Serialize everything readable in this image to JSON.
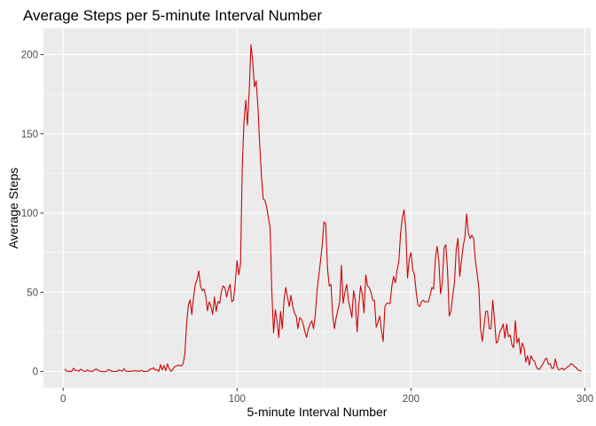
{
  "chart_data": {
    "type": "line",
    "title": "Average Steps per 5-minute Interval Number",
    "xlabel": "5-minute Interval Number",
    "ylabel": "Average Steps",
    "xlim": [
      -11.3,
      303.3
    ],
    "ylim": [
      -10.3,
      216.5
    ],
    "x_ticks": [
      0,
      100,
      200,
      300
    ],
    "y_ticks": [
      0,
      50,
      100,
      150,
      200
    ],
    "grid": true,
    "legend": "none",
    "colors": {
      "line": "#cc0000",
      "panel": "#ebebeb",
      "grid": "#ffffff",
      "tick_text": "#4d4d4d"
    },
    "series": [
      {
        "x_start": 1,
        "x_step": 1,
        "values": [
          1.7,
          0.3,
          0.1,
          0.2,
          0.1,
          2.1,
          0.5,
          0.9,
          0.1,
          1.5,
          0.8,
          0.2,
          0.1,
          1.1,
          0.2,
          0.3,
          0.0,
          1.1,
          1.6,
          0.9,
          0.2,
          0.1,
          0.0,
          0.0,
          0.2,
          1.3,
          0.7,
          0.1,
          0.2,
          0.0,
          0.1,
          1.0,
          0.6,
          0.2,
          1.8,
          0.3,
          0.2,
          0.1,
          0.1,
          0.3,
          0.6,
          0.3,
          0.5,
          0.1,
          0.9,
          0.1,
          0.0,
          0.2,
          0.3,
          1.6,
          1.5,
          2.4,
          0.9,
          1.3,
          0.0,
          4.3,
          1.0,
          3.8,
          0.5,
          4.8,
          1.9,
          0.1,
          1.1,
          3.0,
          3.4,
          4.0,
          3.8,
          3.5,
          5.0,
          11.3,
          30.0,
          42.0,
          45.2,
          36.0,
          47.1,
          55.0,
          58.0,
          63.5,
          54.0,
          51.0,
          52.0,
          47.5,
          38.3,
          44.0,
          41.0,
          36.0,
          47.0,
          38.0,
          44.2,
          43.0,
          50.5,
          54.0,
          53.0,
          47.0,
          52.0,
          55.0,
          44.0,
          45.0,
          56.5,
          70.0,
          61.0,
          68.0,
          129.5,
          157.5,
          171.2,
          155.4,
          177.3,
          206.2,
          196.0,
          179.6,
          183.4,
          167.0,
          143.5,
          124.0,
          109.0,
          108.0,
          104.0,
          97.0,
          91.0,
          50.0,
          24.5,
          39.0,
          32.0,
          21.5,
          38.0,
          27.0,
          45.0,
          53.0,
          47.0,
          41.0,
          48.0,
          41.0,
          37.0,
          35.0,
          27.0,
          34.0,
          33.0,
          30.0,
          25.0,
          21.5,
          27.0,
          30.0,
          32.0,
          27.0,
          36.0,
          51.0,
          60.5,
          70.0,
          80.0,
          94.5,
          93.0,
          65.0,
          54.0,
          55.0,
          35.0,
          27.0,
          34.0,
          39.0,
          44.0,
          67.0,
          43.0,
          50.0,
          55.0,
          45.0,
          40.0,
          34.0,
          51.0,
          45.0,
          25.0,
          42.0,
          54.0,
          49.0,
          37.0,
          61.0,
          54.0,
          53.0,
          50.0,
          45.0,
          45.0,
          28.0,
          31.0,
          35.0,
          26.0,
          19.0,
          41.0,
          43.0,
          43.0,
          43.0,
          54.0,
          60.0,
          56.0,
          64.0,
          69.0,
          87.0,
          97.0,
          102.0,
          90.0,
          59.0,
          71.0,
          75.0,
          64.0,
          61.0,
          50.0,
          42.0,
          41.0,
          44.0,
          45.0,
          44.0,
          44.0,
          44.0,
          48.0,
          53.0,
          52.0,
          71.0,
          79.0,
          70.0,
          49.0,
          56.0,
          78.0,
          80.0,
          64.0,
          35.0,
          38.0,
          48.0,
          56.0,
          77.0,
          84.0,
          60.0,
          70.0,
          79.0,
          85.0,
          99.5,
          87.0,
          84.0,
          86.0,
          84.0,
          70.0,
          62.0,
          53.0,
          27.0,
          19.0,
          29.0,
          38.0,
          38.0,
          27.0,
          27.0,
          45.0,
          33.0,
          18.0,
          19.0,
          25.0,
          27.0,
          30.0,
          21.0,
          30.0,
          22.0,
          23.0,
          17.0,
          15.0,
          32.0,
          18.0,
          21.0,
          11.0,
          18.0,
          15.0,
          6.0,
          10.0,
          4.0,
          10.0,
          7.5,
          6.5,
          3.0,
          1.5,
          1.5,
          3.5,
          5.0,
          7.5,
          8.5,
          4.5,
          5.0,
          2.0,
          2.2,
          8.0,
          3.0,
          1.0,
          1.5,
          2.2,
          1.0,
          2.0,
          3.0,
          3.5,
          5.0,
          4.5,
          3.0,
          2.5,
          1.0,
          0.5,
          0.3
        ]
      }
    ]
  }
}
